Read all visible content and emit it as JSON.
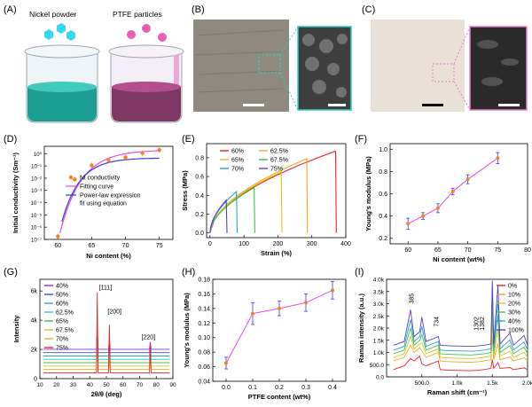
{
  "panel_labels": [
    "(A)",
    "(B)",
    "(C)",
    "(D)",
    "(E)",
    "(F)",
    "(G)",
    "(H)",
    "(I)"
  ],
  "panel_a": {
    "left_title": "Nickel  powder",
    "right_title": "PTFE particles",
    "left_color": "#2ab0a0",
    "right_color": "#8e3f6e",
    "particle_left": "#35d9ee",
    "particle_right": "#ea5fb8"
  },
  "chart_data": [
    {
      "panel": "D",
      "type": "scatter",
      "xlabel": "Ni content (%)",
      "ylabel": "Initial conductivity (Sm⁻¹)",
      "xlim": [
        58,
        77
      ],
      "xticks": [
        60,
        65,
        70,
        75
      ],
      "ylim_exp": [
        -7,
        0.6
      ],
      "yticks": [
        "10¹",
        "10⁰",
        "10⁻¹",
        "10⁻²",
        "10⁻³",
        "10⁻⁴",
        "10⁻⁵",
        "10⁻⁶",
        "10⁻⁷"
      ],
      "ytick_exps": [
        1,
        0,
        -1,
        -2,
        -3,
        -4,
        -5,
        -6,
        -7
      ],
      "points": {
        "x": [
          60,
          62.5,
          65,
          67.5,
          70,
          72.5,
          75
        ],
        "log10y": [
          -6.75,
          -2.1,
          -0.95,
          -0.55,
          -0.3,
          0.05,
          0.3
        ]
      },
      "legend": [
        "Ni conductivity",
        "Fitting curve",
        "Power-law expression",
        "fit using equation"
      ],
      "colors": {
        "points": "#f58220",
        "fit": "#e94be9",
        "power": "#3d3dd8"
      }
    },
    {
      "panel": "E",
      "type": "line",
      "xlabel": "Strain (%)",
      "ylabel": "Stress (MPa)",
      "xlim": [
        -10,
        400
      ],
      "ylim": [
        -0.05,
        0.95
      ],
      "xticks": [
        0,
        100,
        200,
        300,
        400
      ],
      "yticks": [
        0.0,
        0.2,
        0.4,
        0.6,
        0.8
      ],
      "series": [
        {
          "name": "60%",
          "color": "#e8262a",
          "peak": [
            370,
            0.87
          ]
        },
        {
          "name": "62.5%",
          "color": "#f5a623",
          "peak": [
            285,
            0.79
          ]
        },
        {
          "name": "65%",
          "color": "#d9c21f",
          "peak": [
            210,
            0.65
          ]
        },
        {
          "name": "67.5%",
          "color": "#33c84a",
          "peak": [
            130,
            0.48
          ]
        },
        {
          "name": "70%",
          "color": "#2a9fd8",
          "peak": [
            78,
            0.44
          ]
        },
        {
          "name": "75%",
          "color": "#5a3fc0",
          "peak": [
            48,
            0.35
          ]
        }
      ]
    },
    {
      "panel": "F",
      "type": "line",
      "xlabel": "Ni content (wt%)",
      "ylabel": "Young's modulus (MPa)",
      "xlim": [
        57,
        80
      ],
      "ylim": [
        0.15,
        1.05
      ],
      "xticks": [
        60,
        65,
        70,
        75,
        80
      ],
      "yticks": [
        0.2,
        0.4,
        0.6,
        0.8,
        1.0
      ],
      "x": [
        60,
        62.5,
        65,
        67.5,
        70,
        75
      ],
      "y": [
        0.33,
        0.4,
        0.47,
        0.62,
        0.73,
        0.92
      ],
      "err": [
        0.05,
        0.03,
        0.04,
        0.03,
        0.04,
        0.05
      ],
      "color": "#e94be9",
      "marker_color": "#f58220"
    },
    {
      "panel": "G",
      "type": "line",
      "xlabel": "2θ/θ (deg)",
      "ylabel": "Intensity",
      "xlim": [
        10,
        90
      ],
      "xticks": [
        10,
        20,
        30,
        40,
        50,
        60,
        70,
        80,
        90
      ],
      "ylim": [
        0,
        6800
      ],
      "yticks": [
        0,
        2000,
        4000,
        6000
      ],
      "ytick_labels": [
        "0",
        "2k",
        "4k",
        "6k"
      ],
      "peaks_labels": [
        "[111]",
        "[200]",
        "[220]"
      ],
      "peak_positions": [
        44.5,
        51.8,
        76.4
      ],
      "series": [
        {
          "name": "40%",
          "color": "#8a2be2"
        },
        {
          "name": "50%",
          "color": "#3a4fd8"
        },
        {
          "name": "60%",
          "color": "#2a9fd8"
        },
        {
          "name": "62.5%",
          "color": "#2ad0c8"
        },
        {
          "name": "65%",
          "color": "#33c84a"
        },
        {
          "name": "67.5%",
          "color": "#d9c21f"
        },
        {
          "name": "70%",
          "color": "#f5a623"
        },
        {
          "name": "75%",
          "color": "#e8262a"
        }
      ]
    },
    {
      "panel": "H",
      "type": "line",
      "xlabel": "PTFE content (wt%)",
      "ylabel": "Young's modulus (MPa)",
      "xlim": [
        -0.05,
        0.45
      ],
      "ylim": [
        0.04,
        0.18
      ],
      "xticks": [
        0.0,
        0.1,
        0.2,
        0.3,
        0.4
      ],
      "yticks": [
        0.04,
        0.06,
        0.08,
        0.1,
        0.12,
        0.14,
        0.16,
        0.18
      ],
      "x": [
        0.0,
        0.1,
        0.2,
        0.3,
        0.4
      ],
      "y": [
        0.065,
        0.133,
        0.14,
        0.148,
        0.165
      ],
      "err": [
        0.008,
        0.015,
        0.01,
        0.012,
        0.012
      ],
      "color": "#e94be9",
      "marker_color": "#f58220"
    },
    {
      "panel": "I",
      "type": "line",
      "xlabel": "Raman shift (cm⁻¹)",
      "ylabel": "Raman intensity (a.u.)",
      "xlim": [
        0,
        2000
      ],
      "xticks": [
        500,
        1000,
        1500,
        2000
      ],
      "xtick_labels": [
        "500.0",
        "1.0k",
        "1.5k",
        "2.0k"
      ],
      "ylim": [
        0,
        4000
      ],
      "yticks": [
        0,
        500,
        1000,
        1500,
        2000,
        2500,
        3000,
        3500,
        4000
      ],
      "ytick_labels": [
        "0.0",
        "500.0",
        "1.0k",
        "1.5k",
        "2.0k",
        "2.5k",
        "3.0k",
        "3.5k",
        "4.0k"
      ],
      "peak_labels": [
        "385",
        "734",
        "1302",
        "1382"
      ],
      "series": [
        {
          "name": "0%",
          "color": "#e8262a",
          "base": 150
        },
        {
          "name": "10%",
          "color": "#f5a623",
          "base": 500
        },
        {
          "name": "20%",
          "color": "#d9c21f",
          "base": 650
        },
        {
          "name": "30%",
          "color": "#33c84a",
          "base": 800
        },
        {
          "name": "40%",
          "color": "#2a9fd8",
          "base": 950
        },
        {
          "name": "100%",
          "color": "#5a3fc0",
          "base": 1150
        }
      ]
    }
  ]
}
